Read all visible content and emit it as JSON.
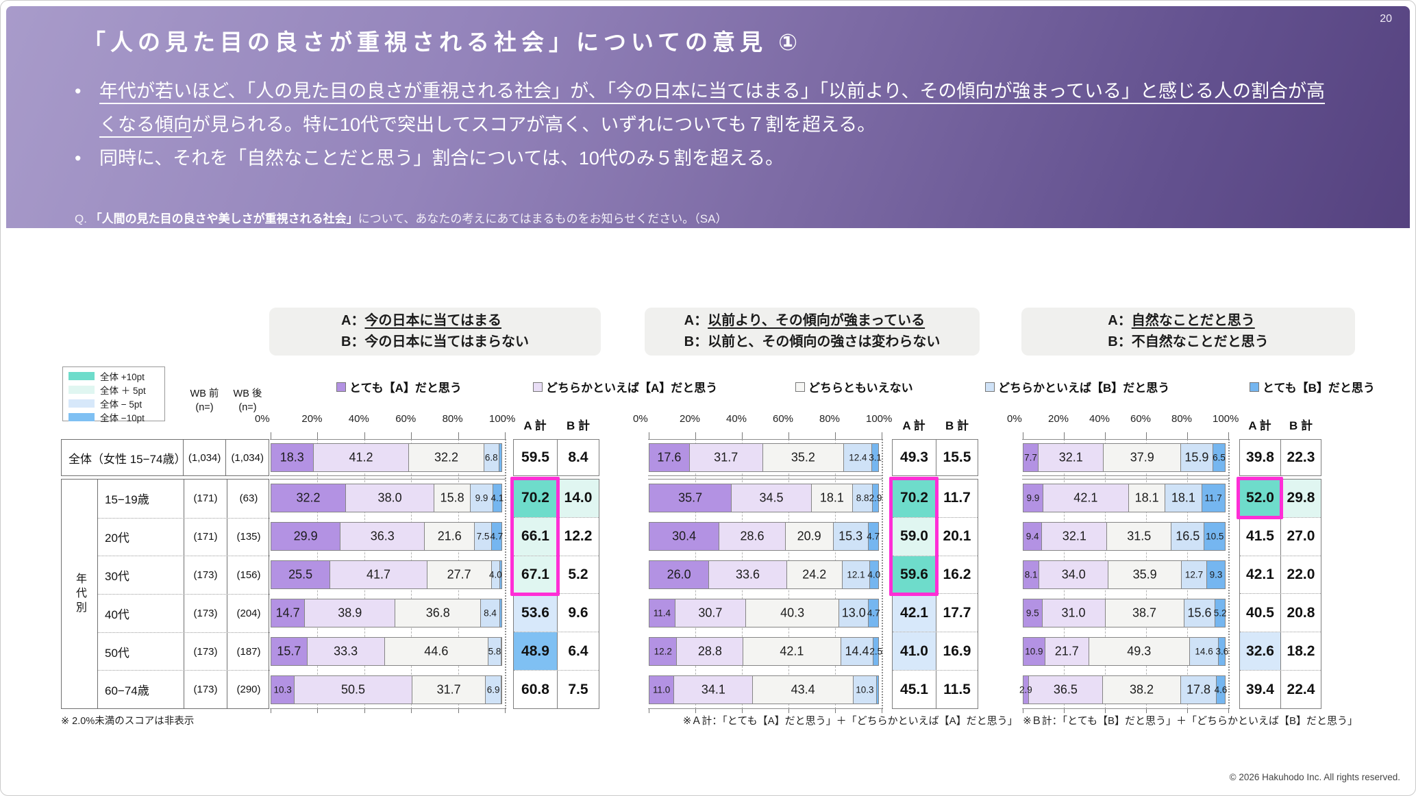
{
  "page": {
    "number": "20",
    "copyright": "© 2026 Hakuhodo Inc. All rights reserved."
  },
  "header": {
    "title": "「人の見た目の良さが重視される社会」についての意見 ①",
    "bullet1_underlined": "年代が若いほど、「人の見た目の良さが重視される社会」が、「今の日本に当てはまる」「以前より、その傾向が強まっている」と感じる人の割合が高くなる傾向",
    "bullet1_rest": "が見られる。特に10代で突出してスコアが高く、いずれについても７割を超える。",
    "bullet2": "同時に、それを「自然なことだと思う」割合については、10代のみ５割を超える。",
    "question_prefix": "Q.",
    "question_bold": "「人間の見た目の良さや美しさが重視される社会」",
    "question_rest": "について、あなたの考えにあてはまるものをお知らせください。（SA）"
  },
  "colors": {
    "segments": [
      "#b392e3",
      "#e9def6",
      "#f4f4f2",
      "#cfe2f7",
      "#75b6f0"
    ],
    "diff": {
      "p10": "#6edccb",
      "p5": "#e0f6f1",
      "m5": "#d7e8fa",
      "m10": "#7fc0f3"
    },
    "highlight_border": "#ff2ed6"
  },
  "series_legend": [
    {
      "label": "とても【A】だと思う",
      "color": "#b392e3"
    },
    {
      "label": "どちらかといえば【A】だと思う",
      "color": "#e9def6"
    },
    {
      "label": "どちらともいえない",
      "color": "#f7f7f5"
    },
    {
      "label": "どちらかといえば【B】だと思う",
      "color": "#cfe2f7"
    },
    {
      "label": "とても【B】だと思う",
      "color": "#75b6f0"
    }
  ],
  "diff_legend": [
    {
      "label": "全体 +10pt",
      "color": "#6edccb"
    },
    {
      "label": "全体 ＋ 5pt",
      "color": "#e0f6f1"
    },
    {
      "label": "全体 − 5pt",
      "color": "#d7e8fa"
    },
    {
      "label": "全体 −10pt",
      "color": "#7fc0f3"
    }
  ],
  "table": {
    "col_wb_pre": "WB 前",
    "col_wb_post": "WB 後",
    "col_n": "(n=)",
    "group_label": "年代別",
    "a_total_label": "A 計",
    "b_total_label": "B 計",
    "rows": [
      {
        "label": "全体（女性 15−74歳）",
        "n_pre": "(1,034)",
        "n_post": "(1,034)"
      },
      {
        "label": "15−19歳",
        "n_pre": "(171)",
        "n_post": "(63)"
      },
      {
        "label": "20代",
        "n_pre": "(171)",
        "n_post": "(135)"
      },
      {
        "label": "30代",
        "n_pre": "(173)",
        "n_post": "(156)"
      },
      {
        "label": "40代",
        "n_pre": "(173)",
        "n_post": "(204)"
      },
      {
        "label": "50代",
        "n_pre": "(173)",
        "n_post": "(187)"
      },
      {
        "label": "60−74歳",
        "n_pre": "(173)",
        "n_post": "(290)"
      }
    ]
  },
  "axis": {
    "ticks": [
      "0%",
      "20%",
      "40%",
      "60%",
      "80%",
      "100%"
    ]
  },
  "footnotes": {
    "left": "※ 2.0%未満のスコアは非表示",
    "right": "※Ａ計：「とても【A】だと思う」＋「どちらかといえば【A】だと思う」　※Ｂ計：「とても【B】だと思う」＋「どちらかといえば【B】だと思う」"
  },
  "chart_data": [
    {
      "type": "stacked-bar-100",
      "panel": {
        "a_prefix": "A：",
        "a_underlined": "今の日本に当てはまる",
        "b_line": "B：今の日本に当てはまらない"
      },
      "series": [
        "とても【A】だと思う",
        "どちらかといえば【A】だと思う",
        "どちらともいえない",
        "どちらかといえば【B】だと思う",
        "とても【B】だと思う"
      ],
      "categories": [
        "全体（女性 15−74歳）",
        "15−19歳",
        "20代",
        "30代",
        "40代",
        "50代",
        "60−74歳"
      ],
      "values": [
        [
          18.3,
          41.2,
          32.2,
          6.8,
          1.5
        ],
        [
          32.2,
          38.0,
          15.8,
          9.9,
          4.1
        ],
        [
          29.9,
          36.3,
          21.6,
          7.5,
          4.7
        ],
        [
          25.5,
          41.7,
          27.7,
          4.0,
          1.1
        ],
        [
          14.7,
          38.9,
          36.8,
          8.4,
          1.2
        ],
        [
          15.7,
          33.3,
          44.6,
          5.8,
          0.6
        ],
        [
          10.3,
          50.5,
          31.7,
          6.9,
          0.6
        ]
      ],
      "a_total": [
        59.5,
        70.2,
        66.1,
        67.1,
        53.6,
        48.9,
        60.8
      ],
      "b_total": [
        8.4,
        14.0,
        12.2,
        5.2,
        9.6,
        6.4,
        7.5
      ],
      "a_total_diff": [
        "",
        "p10",
        "p5",
        "p5",
        "m5",
        "m10",
        ""
      ],
      "b_total_diff": [
        "",
        "p5",
        "",
        "",
        "",
        "",
        ""
      ],
      "highlight": {
        "col": "A",
        "from": 1,
        "to": 3
      },
      "min_label_value": 2.0,
      "xlim": [
        0,
        100
      ]
    },
    {
      "type": "stacked-bar-100",
      "panel": {
        "a_prefix": "A：",
        "a_underlined": "以前より、その傾向が強まっている",
        "b_line": "B：以前と、その傾向の強さは変わらない"
      },
      "series": [
        "とても【A】だと思う",
        "どちらかといえば【A】だと思う",
        "どちらともいえない",
        "どちらかといえば【B】だと思う",
        "とても【B】だと思う"
      ],
      "categories": [
        "全体（女性 15−74歳）",
        "15−19歳",
        "20代",
        "30代",
        "40代",
        "50代",
        "60−74歳"
      ],
      "values": [
        [
          17.6,
          31.7,
          35.2,
          12.4,
          3.1
        ],
        [
          35.7,
          34.5,
          18.1,
          8.8,
          2.9
        ],
        [
          30.4,
          28.6,
          20.9,
          15.3,
          4.7
        ],
        [
          26.0,
          33.6,
          24.2,
          12.1,
          4.0
        ],
        [
          11.4,
          30.7,
          40.3,
          13.0,
          4.7
        ],
        [
          12.2,
          28.8,
          42.1,
          14.4,
          2.5
        ],
        [
          11.0,
          34.1,
          43.4,
          10.3,
          1.2
        ]
      ],
      "a_total": [
        49.3,
        70.2,
        59.0,
        59.6,
        42.1,
        41.0,
        45.1
      ],
      "b_total": [
        15.5,
        11.7,
        20.1,
        16.2,
        17.7,
        16.9,
        11.5
      ],
      "a_total_diff": [
        "",
        "p10",
        "p5",
        "p10",
        "m5",
        "m5",
        ""
      ],
      "b_total_diff": [
        "",
        "",
        "",
        "",
        "",
        "",
        ""
      ],
      "highlight": {
        "col": "A",
        "from": 1,
        "to": 3
      },
      "min_label_value": 2.0,
      "xlim": [
        0,
        100
      ]
    },
    {
      "type": "stacked-bar-100",
      "panel": {
        "a_prefix": "A：",
        "a_underlined": "自然なことだと思う",
        "b_line": "B：不自然なことだと思う"
      },
      "series": [
        "とても【A】だと思う",
        "どちらかといえば【A】だと思う",
        "どちらともいえない",
        "どちらかといえば【B】だと思う",
        "とても【B】だと思う"
      ],
      "categories": [
        "全体（女性 15−74歳）",
        "15−19歳",
        "20代",
        "30代",
        "40代",
        "50代",
        "60−74歳"
      ],
      "values": [
        [
          7.7,
          32.1,
          37.9,
          15.9,
          6.5
        ],
        [
          9.9,
          42.1,
          18.1,
          18.1,
          11.7
        ],
        [
          9.4,
          32.1,
          31.5,
          16.5,
          10.5
        ],
        [
          8.1,
          34.0,
          35.9,
          12.7,
          9.3
        ],
        [
          9.5,
          31.0,
          38.7,
          15.6,
          5.2
        ],
        [
          10.9,
          21.7,
          49.3,
          14.6,
          3.6
        ],
        [
          2.9,
          36.5,
          38.2,
          17.8,
          4.6
        ]
      ],
      "a_total": [
        39.8,
        52.0,
        41.5,
        42.1,
        40.5,
        32.6,
        39.4
      ],
      "b_total": [
        22.3,
        29.8,
        27.0,
        22.0,
        20.8,
        18.2,
        22.4
      ],
      "a_total_diff": [
        "",
        "p10",
        "",
        "",
        "",
        "m5",
        ""
      ],
      "b_total_diff": [
        "",
        "p5",
        "",
        "",
        "",
        "",
        ""
      ],
      "highlight": {
        "col": "A",
        "from": 1,
        "to": 1
      },
      "min_label_value": 2.0,
      "xlim": [
        0,
        100
      ]
    }
  ]
}
